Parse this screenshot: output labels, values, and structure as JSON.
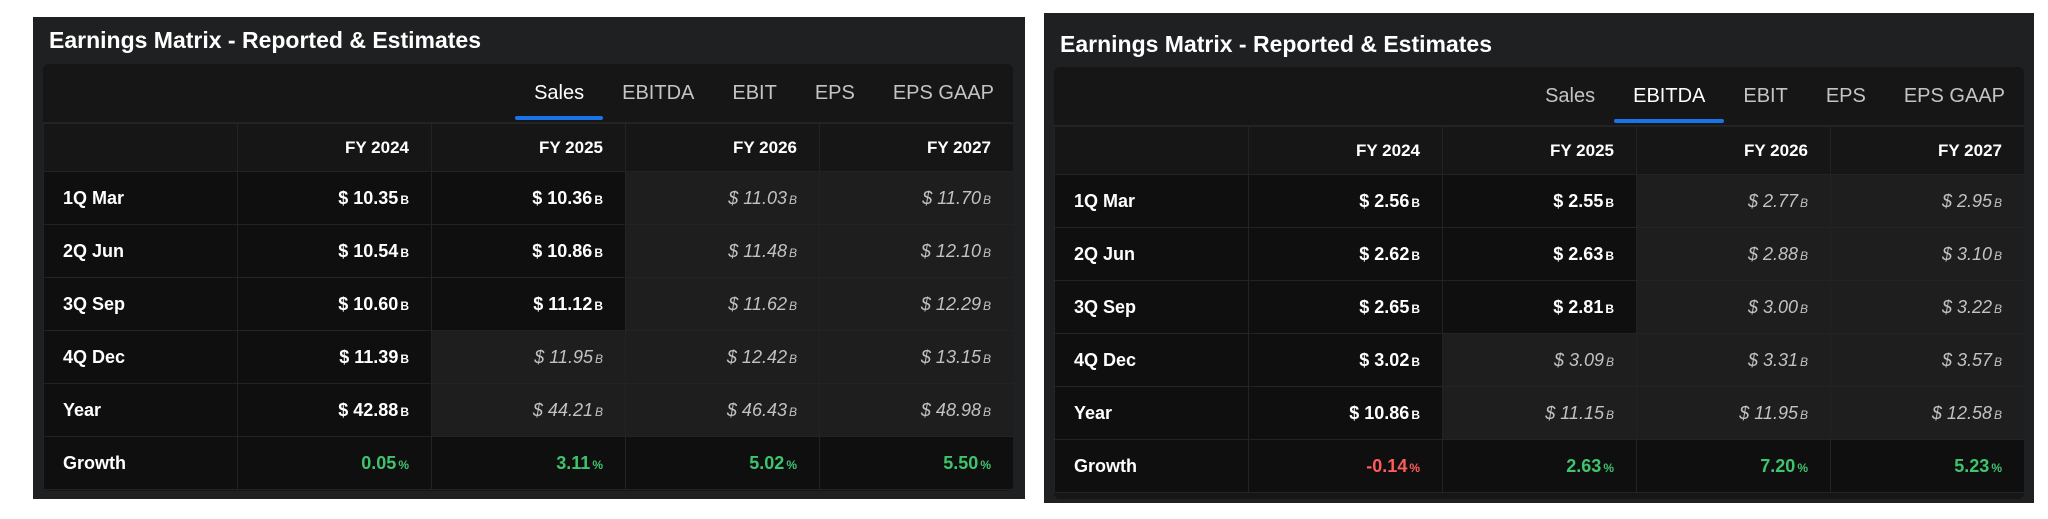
{
  "panels": [
    {
      "title": "Earnings Matrix - Reported & Estimates",
      "tabs": [
        "Sales",
        "EBITDA",
        "EBIT",
        "EPS",
        "EPS GAAP"
      ],
      "active_tab": "Sales",
      "columns": [
        "FY 2024",
        "FY 2025",
        "FY 2026",
        "FY 2027"
      ],
      "rows": [
        {
          "label": "1Q Mar",
          "cells": [
            {
              "v": "$ 10.35",
              "u": "B",
              "t": "rep"
            },
            {
              "v": "$ 10.36",
              "u": "B",
              "t": "rep"
            },
            {
              "v": "$ 11.03",
              "u": "B",
              "t": "est"
            },
            {
              "v": "$ 11.70",
              "u": "B",
              "t": "est"
            }
          ]
        },
        {
          "label": "2Q Jun",
          "cells": [
            {
              "v": "$ 10.54",
              "u": "B",
              "t": "rep"
            },
            {
              "v": "$ 10.86",
              "u": "B",
              "t": "rep"
            },
            {
              "v": "$ 11.48",
              "u": "B",
              "t": "est"
            },
            {
              "v": "$ 12.10",
              "u": "B",
              "t": "est"
            }
          ]
        },
        {
          "label": "3Q Sep",
          "cells": [
            {
              "v": "$ 10.60",
              "u": "B",
              "t": "rep"
            },
            {
              "v": "$ 11.12",
              "u": "B",
              "t": "rep"
            },
            {
              "v": "$ 11.62",
              "u": "B",
              "t": "est"
            },
            {
              "v": "$ 12.29",
              "u": "B",
              "t": "est"
            }
          ]
        },
        {
          "label": "4Q Dec",
          "cells": [
            {
              "v": "$ 11.39",
              "u": "B",
              "t": "rep"
            },
            {
              "v": "$ 11.95",
              "u": "B",
              "t": "est"
            },
            {
              "v": "$ 12.42",
              "u": "B",
              "t": "est"
            },
            {
              "v": "$ 13.15",
              "u": "B",
              "t": "est"
            }
          ]
        },
        {
          "label": "Year",
          "cells": [
            {
              "v": "$ 42.88",
              "u": "B",
              "t": "rep"
            },
            {
              "v": "$ 44.21",
              "u": "B",
              "t": "est"
            },
            {
              "v": "$ 46.43",
              "u": "B",
              "t": "est"
            },
            {
              "v": "$ 48.98",
              "u": "B",
              "t": "est"
            }
          ]
        },
        {
          "label": "Growth",
          "cells": [
            {
              "v": "0.05",
              "u": "%",
              "t": "pos"
            },
            {
              "v": "3.11",
              "u": "%",
              "t": "pos"
            },
            {
              "v": "5.02",
              "u": "%",
              "t": "pos"
            },
            {
              "v": "5.50",
              "u": "%",
              "t": "pos"
            }
          ]
        }
      ]
    },
    {
      "title": "Earnings Matrix - Reported & Estimates",
      "tabs": [
        "Sales",
        "EBITDA",
        "EBIT",
        "EPS",
        "EPS GAAP"
      ],
      "active_tab": "EBITDA",
      "columns": [
        "FY 2024",
        "FY 2025",
        "FY 2026",
        "FY 2027"
      ],
      "rows": [
        {
          "label": "1Q Mar",
          "cells": [
            {
              "v": "$ 2.56",
              "u": "B",
              "t": "rep"
            },
            {
              "v": "$ 2.55",
              "u": "B",
              "t": "rep"
            },
            {
              "v": "$ 2.77",
              "u": "B",
              "t": "est"
            },
            {
              "v": "$ 2.95",
              "u": "B",
              "t": "est"
            }
          ]
        },
        {
          "label": "2Q Jun",
          "cells": [
            {
              "v": "$ 2.62",
              "u": "B",
              "t": "rep"
            },
            {
              "v": "$ 2.63",
              "u": "B",
              "t": "rep"
            },
            {
              "v": "$ 2.88",
              "u": "B",
              "t": "est"
            },
            {
              "v": "$ 3.10",
              "u": "B",
              "t": "est"
            }
          ]
        },
        {
          "label": "3Q Sep",
          "cells": [
            {
              "v": "$ 2.65",
              "u": "B",
              "t": "rep"
            },
            {
              "v": "$ 2.81",
              "u": "B",
              "t": "rep"
            },
            {
              "v": "$ 3.00",
              "u": "B",
              "t": "est"
            },
            {
              "v": "$ 3.22",
              "u": "B",
              "t": "est"
            }
          ]
        },
        {
          "label": "4Q Dec",
          "cells": [
            {
              "v": "$ 3.02",
              "u": "B",
              "t": "rep"
            },
            {
              "v": "$ 3.09",
              "u": "B",
              "t": "est"
            },
            {
              "v": "$ 3.31",
              "u": "B",
              "t": "est"
            },
            {
              "v": "$ 3.57",
              "u": "B",
              "t": "est"
            }
          ]
        },
        {
          "label": "Year",
          "cells": [
            {
              "v": "$ 10.86",
              "u": "B",
              "t": "rep"
            },
            {
              "v": "$ 11.15",
              "u": "B",
              "t": "est"
            },
            {
              "v": "$ 11.95",
              "u": "B",
              "t": "est"
            },
            {
              "v": "$ 12.58",
              "u": "B",
              "t": "est"
            }
          ]
        },
        {
          "label": "Growth",
          "cells": [
            {
              "v": "-0.14",
              "u": "%",
              "t": "neg"
            },
            {
              "v": "2.63",
              "u": "%",
              "t": "pos"
            },
            {
              "v": "7.20",
              "u": "%",
              "t": "pos"
            },
            {
              "v": "5.23",
              "u": "%",
              "t": "pos"
            }
          ]
        }
      ]
    }
  ],
  "colors": {
    "accent": "#1a73e8",
    "positive": "#3ec46d",
    "negative": "#ff5b5b",
    "panel": "#1f2021",
    "reported_bg": "#0f0f0f",
    "estimate_bg": "#1e1e1e"
  }
}
